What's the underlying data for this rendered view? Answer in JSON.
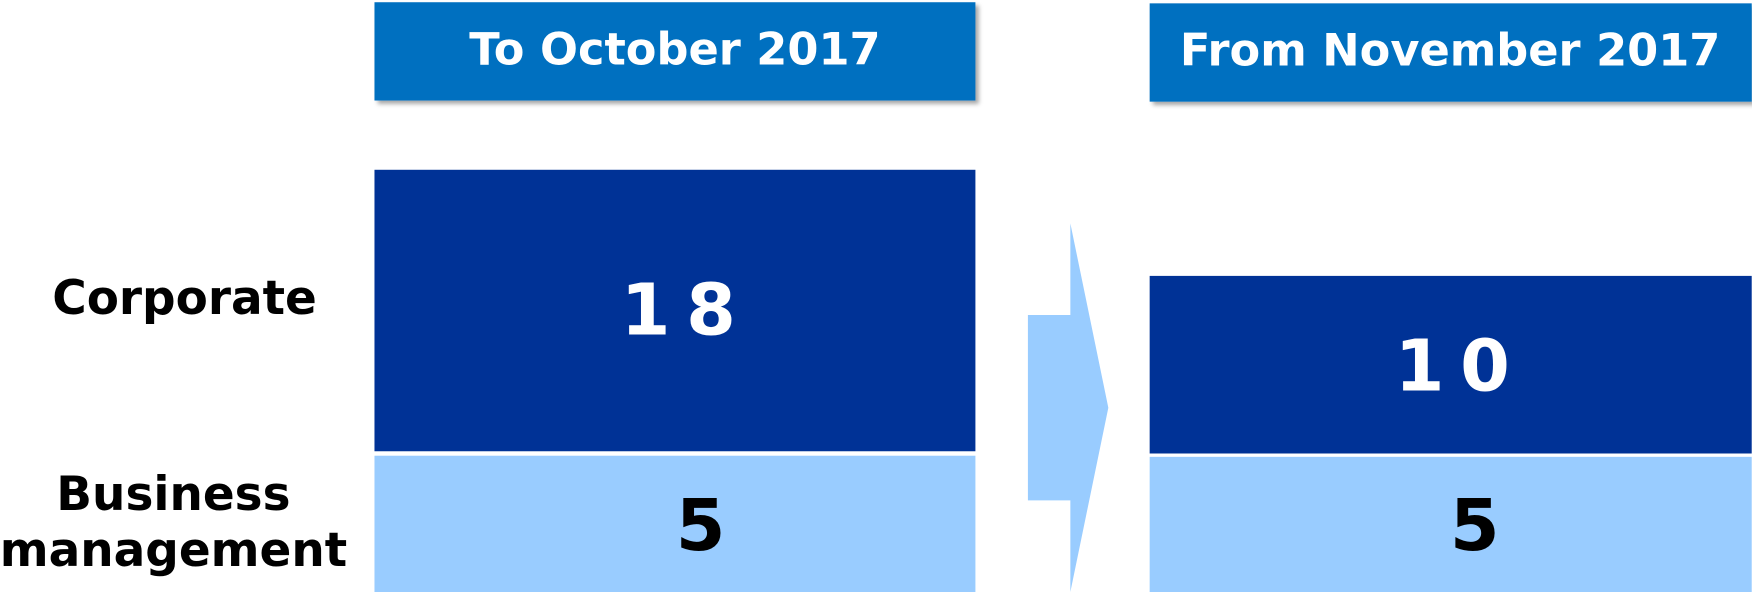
{
  "columns": [
    {
      "title": "To October 2017",
      "cells": [
        "18",
        "5"
      ]
    },
    {
      "title": "From November 2017",
      "cells": [
        "10",
        "5"
      ]
    }
  ],
  "rows": [
    "Corporate",
    "Business management"
  ]
}
